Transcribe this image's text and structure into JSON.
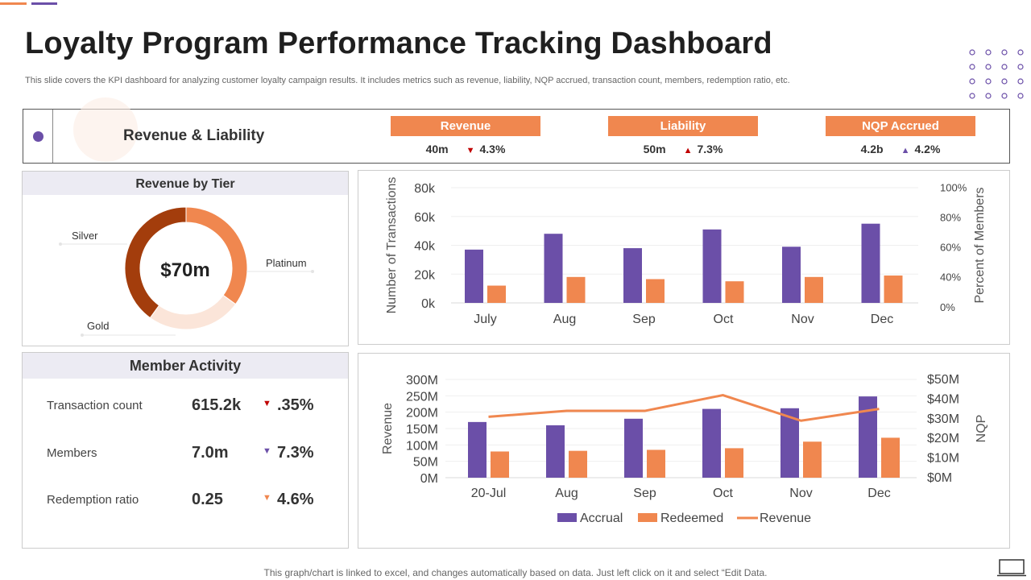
{
  "title": "Loyalty Program Performance Tracking Dashboard",
  "subtitle": "This slide covers the KPI dashboard for analyzing customer loyalty campaign results. It includes metrics such as revenue, liability, NQP accrued, transaction count, members, redemption ratio, etc.",
  "colors": {
    "purple": "#6b4fa8",
    "orange": "#f0874f",
    "dark_orange": "#a33d0c",
    "pale": "#fbe5d9",
    "red": "#c00000"
  },
  "revenue_liability": {
    "title": "Revenue & Liability",
    "kpis": [
      {
        "label": "Revenue",
        "value": "40m",
        "change": "4.3%",
        "direction": "down",
        "color": "#c00000"
      },
      {
        "label": "Liability",
        "value": "50m",
        "change": "7.3%",
        "direction": "up",
        "color": "#c00000"
      },
      {
        "label": "NQP Accrued",
        "value": "4.2b",
        "change": "4.2%",
        "direction": "up",
        "color": "#6b4fa8"
      }
    ]
  },
  "revenue_by_tier": {
    "title": "Revenue by Tier",
    "center_label": "$70m",
    "labels": {
      "silver": "Silver",
      "platinum": "Platinum",
      "gold": "Gold"
    }
  },
  "member_activity": {
    "title": "Member Activity",
    "rows": [
      {
        "label": "Transaction count",
        "value": "615.2k",
        "change": ".35%",
        "direction": "down",
        "color": "#c00000"
      },
      {
        "label": "Members",
        "value": "7.0m",
        "change": "7.3%",
        "direction": "down",
        "color": "#6b4fa8"
      },
      {
        "label": "Redemption ratio",
        "value": "0.25",
        "change": "4.6%",
        "direction": "down",
        "color": "#f0874f"
      }
    ]
  },
  "chart_data": [
    {
      "type": "pie",
      "title": "Revenue by Tier",
      "center_label": "$70m",
      "categories": [
        "Platinum",
        "Gold",
        "Silver"
      ],
      "values": [
        35,
        25,
        40
      ],
      "colors": [
        "#f0874f",
        "#fbe5d9",
        "#a33d0c"
      ]
    },
    {
      "type": "bar",
      "categories": [
        "July",
        "Aug",
        "Sep",
        "Oct",
        "Nov",
        "Dec"
      ],
      "ylabel": "Number of Transactions",
      "y2label": "Percent of Members",
      "ylim": [
        0,
        80000
      ],
      "y2lim": [
        0,
        100
      ],
      "y_ticks": [
        "0k",
        "20k",
        "40k",
        "60k",
        "80k"
      ],
      "y2_ticks": [
        "0%",
        "40%",
        "60%",
        "80%",
        "100%"
      ],
      "series": [
        {
          "name": "Transactions",
          "values": [
            37000,
            48000,
            38000,
            51000,
            39000,
            55000
          ],
          "color": "#6b4fa8"
        },
        {
          "name": "Members",
          "values": [
            12000,
            18000,
            16500,
            15000,
            18000,
            19000
          ],
          "color": "#f0874f"
        }
      ]
    },
    {
      "type": "bar",
      "categories": [
        "20-Jul",
        "Aug",
        "Sep",
        "Oct",
        "Nov",
        "Dec"
      ],
      "ylabel": "Revenue",
      "y2label": "NQP",
      "ylim": [
        0,
        300
      ],
      "y2lim": [
        0,
        50
      ],
      "y_ticks": [
        "0M",
        "50M",
        "100M",
        "150M",
        "200M",
        "250M",
        "300M"
      ],
      "y2_ticks": [
        "$0M",
        "$10M",
        "$20M",
        "$30M",
        "$40M",
        "$50M"
      ],
      "series": [
        {
          "name": "Accrual",
          "values": [
            170,
            160,
            180,
            210,
            212,
            248
          ],
          "color": "#6b4fa8"
        },
        {
          "name": "Redeemed",
          "values": [
            80,
            82,
            85,
            90,
            110,
            122
          ],
          "color": "#f0874f"
        },
        {
          "name": "Revenue",
          "type": "line",
          "axis": "y2",
          "values": [
            31,
            34,
            34,
            42,
            29,
            35
          ],
          "color": "#f0874f"
        }
      ],
      "legend": [
        "Accrual",
        "Redeemed",
        "Revenue"
      ]
    }
  ],
  "footer": "This graph/chart is linked to excel,  and changes automatically based on data. Just left click on it and select “Edit Data."
}
